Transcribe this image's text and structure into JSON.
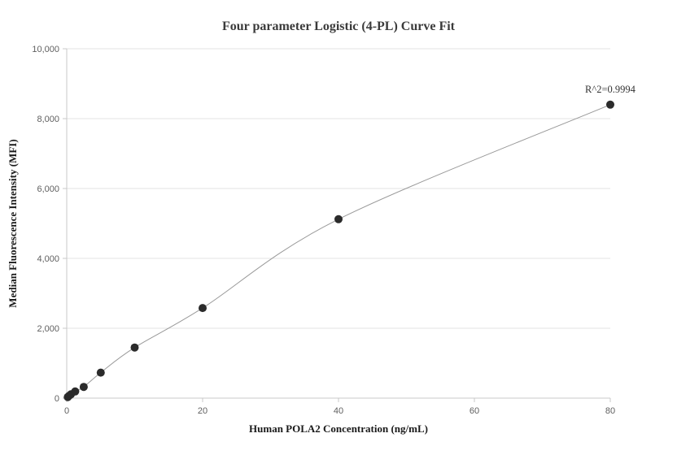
{
  "title": "Four parameter Logistic (4-PL) Curve Fit",
  "chart_data": {
    "type": "scatter",
    "title": "Four parameter Logistic (4-PL) Curve Fit",
    "xlabel": "Human POLA2 Concentration (ng/mL)",
    "ylabel": "Median Fluorescence Intensity (MFI)",
    "x": [
      0.156,
      0.3125,
      0.625,
      1.25,
      2.5,
      5,
      10,
      20,
      40,
      80
    ],
    "y": [
      30,
      60,
      110,
      190,
      320,
      730,
      1450,
      2580,
      5120,
      8400
    ],
    "fit_curve": true,
    "annotation": {
      "text": "R^2=0.9994",
      "at_x": 80,
      "at_y": 8400
    },
    "xlim": [
      0,
      80
    ],
    "ylim": [
      0,
      10000
    ],
    "xticks": [
      0,
      20,
      40,
      60,
      80
    ],
    "xtick_labels": [
      "0",
      "20",
      "40",
      "60",
      "80"
    ],
    "yticks": [
      0,
      2000,
      4000,
      6000,
      8000,
      10000
    ],
    "ytick_labels": [
      "0",
      "2,000",
      "4,000",
      "6,000",
      "8,000",
      "10,000"
    ],
    "grid": "horizontal",
    "legend": "none",
    "colors": {
      "point": "#2b2b2b",
      "line": "#999999",
      "grid": "#e3e3e3",
      "axis": "#c9c9c9",
      "tick_text": "#5f5f5f",
      "title_text": "#3b3b3b",
      "label_text": "#1a1a1a",
      "annotation_text": "#333333",
      "background": "#ffffff"
    }
  }
}
